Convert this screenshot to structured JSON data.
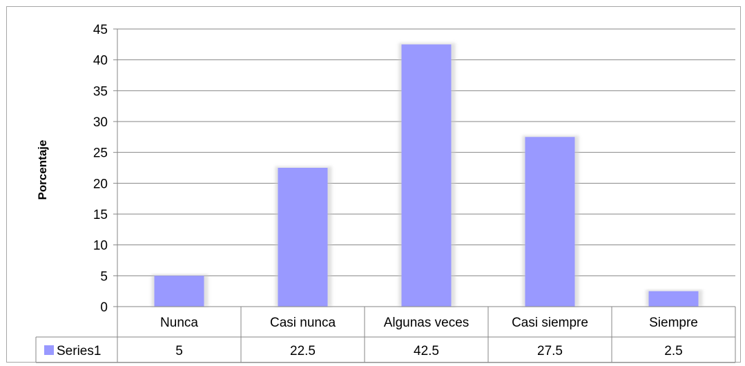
{
  "chart_data": {
    "type": "bar",
    "title": "",
    "xlabel": "",
    "ylabel": "Porcentaje",
    "ylim": [
      0,
      45
    ],
    "yticks": [
      0,
      5,
      10,
      15,
      20,
      25,
      30,
      35,
      40,
      45
    ],
    "grid": true,
    "legend_position": "data-table-left",
    "categories": [
      "Nunca",
      "Casi nunca",
      "Algunas veces",
      "Casi siempre",
      "Siempre"
    ],
    "series": [
      {
        "name": "Series1",
        "values": [
          5,
          22.5,
          42.5,
          27.5,
          2.5
        ],
        "color": "#9999ff"
      }
    ],
    "data_table": true
  }
}
